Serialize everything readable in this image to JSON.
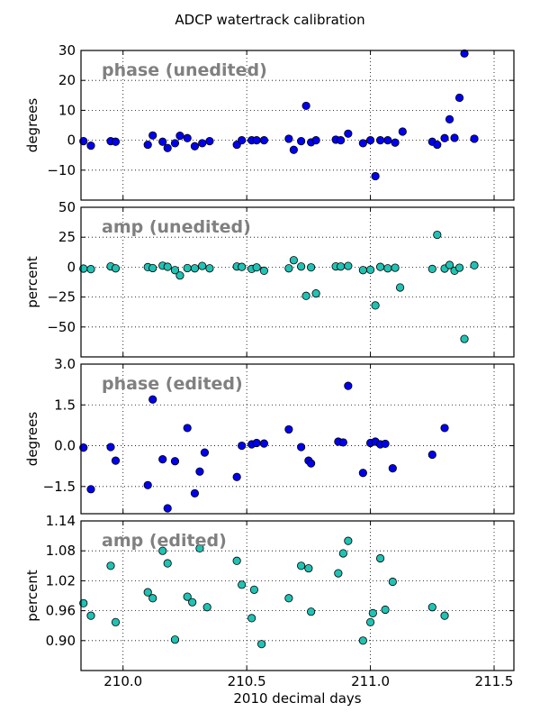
{
  "figure": {
    "title": "ADCP watertrack calibration"
  },
  "colors": {
    "blue_marker": "#0000ee",
    "cyan_marker": "#20c2b4",
    "title_gray": "#808080"
  },
  "chart_data": [
    {
      "type": "scatter",
      "title": "phase (unedited)",
      "ylabel": "degrees",
      "xlabel": "",
      "xlim": [
        209.83,
        211.58
      ],
      "ylim": [
        -20,
        30
      ],
      "xticks": [
        210.0,
        210.5,
        211.0,
        211.5
      ],
      "yticks": [
        -10,
        0,
        10,
        20,
        30
      ],
      "ytick_labels": [
        "−10",
        "0",
        "10",
        "20",
        "30"
      ],
      "grid": true,
      "marker_color": "#0000ee",
      "x": [
        209.84,
        209.87,
        209.95,
        209.97,
        210.1,
        210.12,
        210.16,
        210.18,
        210.21,
        210.23,
        210.26,
        210.29,
        210.32,
        210.35,
        210.46,
        210.48,
        210.52,
        210.54,
        210.57,
        210.67,
        210.69,
        210.72,
        210.74,
        210.76,
        210.78,
        210.86,
        210.88,
        210.91,
        210.97,
        211.0,
        211.02,
        211.04,
        211.07,
        211.1,
        211.13,
        211.25,
        211.27,
        211.3,
        211.32,
        211.34,
        211.36,
        211.38,
        211.42
      ],
      "y": [
        -0.3,
        -1.8,
        -0.3,
        -0.5,
        -1.5,
        1.6,
        -0.5,
        -2.6,
        -1.0,
        1.5,
        0.7,
        -2.0,
        -1.0,
        -0.3,
        -1.5,
        0,
        0,
        0,
        0,
        0.5,
        -3.2,
        -0.3,
        11.5,
        -0.7,
        0,
        0.2,
        0,
        2.2,
        -1.0,
        0,
        -12.0,
        0,
        0,
        -0.8,
        2.9,
        -0.5,
        -1.5,
        0.7,
        7.0,
        0.8,
        14.2,
        29.0,
        0.5
      ]
    },
    {
      "type": "scatter",
      "title": "amp (unedited)",
      "ylabel": "percent",
      "xlabel": "",
      "xlim": [
        209.83,
        211.58
      ],
      "ylim": [
        -75,
        50
      ],
      "xticks": [
        210.0,
        210.5,
        211.0,
        211.5
      ],
      "yticks": [
        -50,
        -25,
        0,
        25,
        50
      ],
      "ytick_labels": [
        "−50",
        "−25",
        "0",
        "25",
        "50"
      ],
      "grid": true,
      "marker_color": "#20c2b4",
      "x": [
        209.84,
        209.87,
        209.95,
        209.97,
        210.1,
        210.12,
        210.16,
        210.18,
        210.21,
        210.23,
        210.26,
        210.29,
        210.32,
        210.35,
        210.46,
        210.48,
        210.52,
        210.54,
        210.57,
        210.67,
        210.69,
        210.72,
        210.74,
        210.76,
        210.78,
        210.86,
        210.88,
        210.91,
        210.97,
        211.0,
        211.02,
        211.04,
        211.07,
        211.1,
        211.12,
        211.25,
        211.27,
        211.3,
        211.32,
        211.34,
        211.36,
        211.38,
        211.42
      ],
      "y": [
        -1.2,
        -1.7,
        0.6,
        -1.0,
        0,
        -0.8,
        1.2,
        0.3,
        -2.5,
        -7.0,
        -0.8,
        -1.0,
        1.0,
        -1.0,
        0.5,
        0.2,
        -1.5,
        -0.2,
        -3.0,
        -1.0,
        5.8,
        0.5,
        -24.0,
        -0.2,
        -22.0,
        0.6,
        0.5,
        1.0,
        -2.5,
        -2.2,
        -32.0,
        0.2,
        -1.0,
        -0.5,
        -17.0,
        -1.5,
        27.0,
        -1.2,
        1.8,
        -3.0,
        -0.5,
        -60.0,
        1.5
      ]
    },
    {
      "type": "scatter",
      "title": "phase (edited)",
      "ylabel": "degrees",
      "xlabel": "",
      "xlim": [
        209.83,
        211.58
      ],
      "ylim": [
        -2.5,
        3.0
      ],
      "xticks": [
        210.0,
        210.5,
        211.0,
        211.5
      ],
      "yticks": [
        -1.5,
        0.0,
        1.5,
        3.0
      ],
      "ytick_labels": [
        "−1.5",
        "0.0",
        "1.5",
        "3.0"
      ],
      "grid": true,
      "marker_color": "#0000ee",
      "x": [
        209.84,
        209.87,
        209.95,
        209.97,
        210.1,
        210.12,
        210.16,
        210.18,
        210.21,
        210.26,
        210.29,
        210.31,
        210.33,
        210.46,
        210.48,
        210.52,
        210.54,
        210.57,
        210.67,
        210.72,
        210.75,
        210.76,
        210.87,
        210.89,
        210.91,
        210.97,
        211.0,
        211.02,
        211.04,
        211.06,
        211.09,
        211.25,
        211.3
      ],
      "y": [
        -0.07,
        -1.6,
        -0.05,
        -0.55,
        -1.45,
        1.7,
        -0.5,
        -2.3,
        -0.57,
        0.65,
        -1.75,
        -0.95,
        -0.25,
        -1.15,
        0.0,
        0.05,
        0.1,
        0.08,
        0.6,
        -0.05,
        -0.55,
        -0.65,
        0.15,
        0.12,
        2.2,
        -1.0,
        0.1,
        0.15,
        0.05,
        0.07,
        -0.83,
        -0.33,
        0.65
      ]
    },
    {
      "type": "scatter",
      "title": "amp (edited)",
      "ylabel": "percent",
      "xlabel": "2010 decimal days",
      "xlim": [
        209.83,
        211.58
      ],
      "ylim": [
        0.84,
        1.14
      ],
      "xticks": [
        210.0,
        210.5,
        211.0,
        211.5
      ],
      "xtick_labels": [
        "210.0",
        "210.5",
        "211.0",
        "211.5"
      ],
      "yticks": [
        0.9,
        0.96,
        1.02,
        1.08,
        1.14
      ],
      "ytick_labels": [
        "0.90",
        "0.96",
        "1.02",
        "1.08",
        "1.14"
      ],
      "grid": true,
      "marker_color": "#20c2b4",
      "x": [
        209.84,
        209.87,
        209.95,
        209.97,
        210.1,
        210.12,
        210.16,
        210.18,
        210.21,
        210.26,
        210.28,
        210.31,
        210.34,
        210.46,
        210.48,
        210.52,
        210.53,
        210.56,
        210.67,
        210.72,
        210.75,
        210.76,
        210.87,
        210.89,
        210.91,
        210.97,
        211.0,
        211.01,
        211.04,
        211.06,
        211.09,
        211.25,
        211.3
      ],
      "y": [
        0.975,
        0.95,
        1.05,
        0.937,
        0.997,
        0.985,
        1.08,
        1.055,
        0.902,
        0.988,
        0.977,
        1.085,
        0.967,
        1.06,
        1.012,
        0.945,
        1.002,
        0.893,
        0.985,
        1.05,
        1.045,
        0.958,
        1.035,
        1.075,
        1.1,
        0.9,
        0.937,
        0.955,
        1.065,
        0.962,
        1.018,
        0.967,
        0.95
      ]
    }
  ]
}
